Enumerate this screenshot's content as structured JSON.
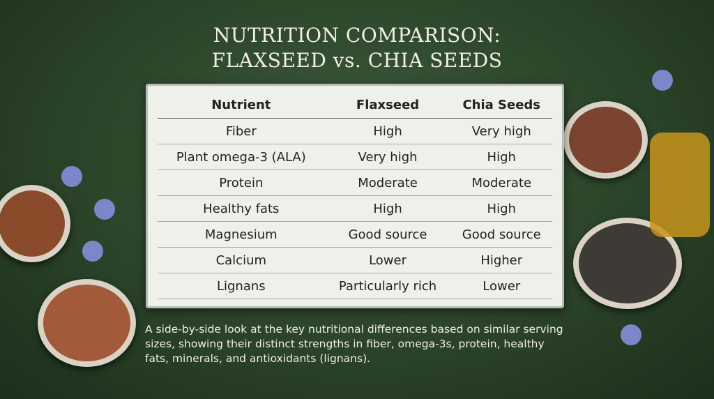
{
  "title": [
    "NUTRITION COMPARISON:",
    "FLAXSEED vs. CHIA SEEDS"
  ],
  "table": {
    "header": [
      "Nutrient",
      "Flaxseed",
      "Chia Seeds"
    ],
    "rows": [
      [
        "Fiber",
        "High",
        "Very high"
      ],
      [
        "Plant omega-3 (ALA)",
        "Very high",
        "High"
      ],
      [
        "Protein",
        "Moderate",
        "Moderate"
      ],
      [
        "Healthy fats",
        "High",
        "High"
      ],
      [
        "Magnesium",
        "Good source",
        "Good source"
      ],
      [
        "Calcium",
        "Lower",
        "Higher"
      ],
      [
        "Lignans",
        "Particularly rich",
        "Lower"
      ]
    ]
  },
  "caption": "A side-by-side look at the key nutritional differences based on similar serving sizes, showing their distinct strengths in fiber, omega-3s, protein, healthy fats, minerals, and antioxidants (lignans)."
}
